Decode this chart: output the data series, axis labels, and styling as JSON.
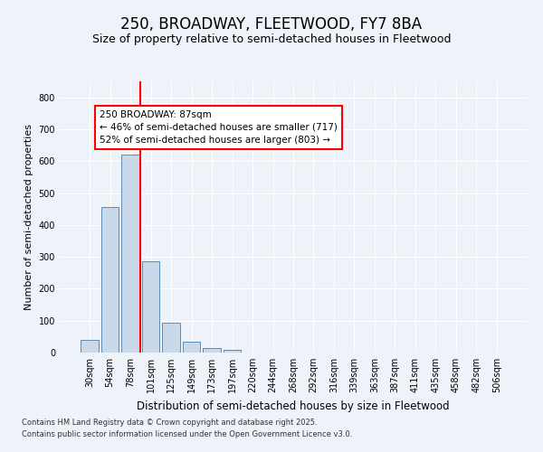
{
  "title1": "250, BROADWAY, FLEETWOOD, FY7 8BA",
  "title2": "Size of property relative to semi-detached houses in Fleetwood",
  "xlabel": "Distribution of semi-detached houses by size in Fleetwood",
  "ylabel": "Number of semi-detached properties",
  "categories": [
    "30sqm",
    "54sqm",
    "78sqm",
    "101sqm",
    "125sqm",
    "149sqm",
    "173sqm",
    "197sqm",
    "220sqm",
    "244sqm",
    "268sqm",
    "292sqm",
    "316sqm",
    "339sqm",
    "363sqm",
    "387sqm",
    "411sqm",
    "435sqm",
    "458sqm",
    "482sqm",
    "506sqm"
  ],
  "values": [
    40,
    455,
    620,
    285,
    93,
    33,
    15,
    8,
    0,
    0,
    0,
    0,
    0,
    0,
    0,
    0,
    0,
    0,
    0,
    0,
    0
  ],
  "bar_color": "#c9d9ea",
  "bar_edge_color": "#5b8db8",
  "vline_x": 2.5,
  "vline_color": "red",
  "annotation_title": "250 BROADWAY: 87sqm",
  "annotation_line1": "← 46% of semi-detached houses are smaller (717)",
  "annotation_line2": "52% of semi-detached houses are larger (803) →",
  "annotation_box_color": "white",
  "annotation_box_edge": "red",
  "ylim": [
    0,
    850
  ],
  "yticks": [
    0,
    100,
    200,
    300,
    400,
    500,
    600,
    700,
    800
  ],
  "footnote1": "Contains HM Land Registry data © Crown copyright and database right 2025.",
  "footnote2": "Contains public sector information licensed under the Open Government Licence v3.0.",
  "bg_color": "#eef2f9",
  "grid_color": "white",
  "title1_fontsize": 12,
  "title2_fontsize": 9,
  "ylabel_fontsize": 8,
  "xlabel_fontsize": 8.5,
  "tick_fontsize": 7,
  "annot_fontsize": 7.5,
  "footnote_fontsize": 6
}
